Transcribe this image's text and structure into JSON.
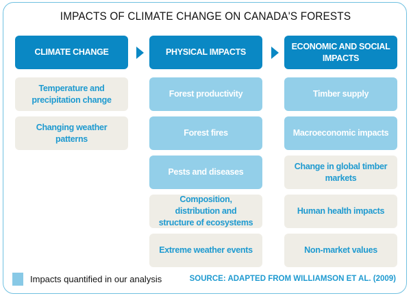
{
  "title": "IMPACTS OF CLIMATE CHANGE ON CANADA'S FORESTS",
  "columns": [
    {
      "header": "CLIMATE CHANGE",
      "items": [
        {
          "label": "Temperature and precipitation change",
          "quantified": false
        },
        {
          "label": "Changing weather patterns",
          "quantified": false
        }
      ]
    },
    {
      "header": "PHYSICAL IMPACTS",
      "items": [
        {
          "label": "Forest productivity",
          "quantified": true
        },
        {
          "label": "Forest fires",
          "quantified": true
        },
        {
          "label": "Pests and diseases",
          "quantified": true
        },
        {
          "label": "Composition, distribution and structure of ecosystems",
          "quantified": false
        },
        {
          "label": "Extreme weather events",
          "quantified": false
        }
      ]
    },
    {
      "header": "ECONOMIC AND SOCIAL IMPACTS",
      "items": [
        {
          "label": "Timber supply",
          "quantified": true
        },
        {
          "label": "Macroeconomic impacts",
          "quantified": true
        },
        {
          "label": "Change in global timber markets",
          "quantified": false
        },
        {
          "label": "Human health impacts",
          "quantified": false
        },
        {
          "label": "Non-market values",
          "quantified": false
        }
      ]
    }
  ],
  "legend": {
    "label": "Impacts quantified in our analysis",
    "color": "#88c9e6"
  },
  "source": "SOURCE:  ADAPTED FROM WILLIAMSON ET AL. (2009)",
  "colors": {
    "header": "#0a88c4",
    "quantified": "#93cfe9",
    "other": "#efede6",
    "text": "#1e9ad0"
  }
}
